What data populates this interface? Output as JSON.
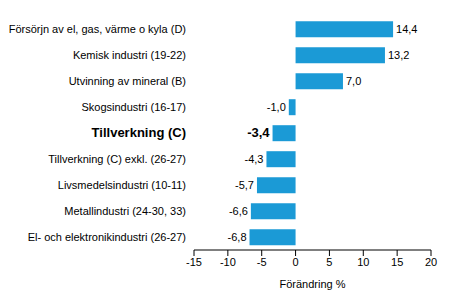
{
  "chart_data": {
    "type": "bar",
    "orientation": "horizontal",
    "categories": [
      "Försörjn av el, gas, värme o kyla (D)",
      "Kemisk industri (19-22)",
      "Utvinning av mineral (B)",
      "Skogsindustri (16-17)",
      "Tillverkning (C)",
      "Tillverkning (C) exkl. (26-27)",
      "Livsmedelsindustri (10-11)",
      "Metallindustri (24-30, 33)",
      "El- och elektronikindustri (26-27)"
    ],
    "values": [
      14.4,
      13.2,
      7.0,
      -1.0,
      -3.4,
      -4.3,
      -5.7,
      -6.6,
      -6.8
    ],
    "value_labels": [
      "14,4",
      "13,2",
      "7,0",
      "-1,0",
      "-3,4",
      "-4,3",
      "-5,7",
      "-6,6",
      "-6,8"
    ],
    "data_labels": true,
    "color": "#1b9ad6",
    "x_label": "Förändring %",
    "xlim": [
      -15,
      20
    ],
    "xticks": [
      -15,
      -10,
      -5,
      0,
      5,
      10,
      15,
      20
    ],
    "grid": false
  }
}
